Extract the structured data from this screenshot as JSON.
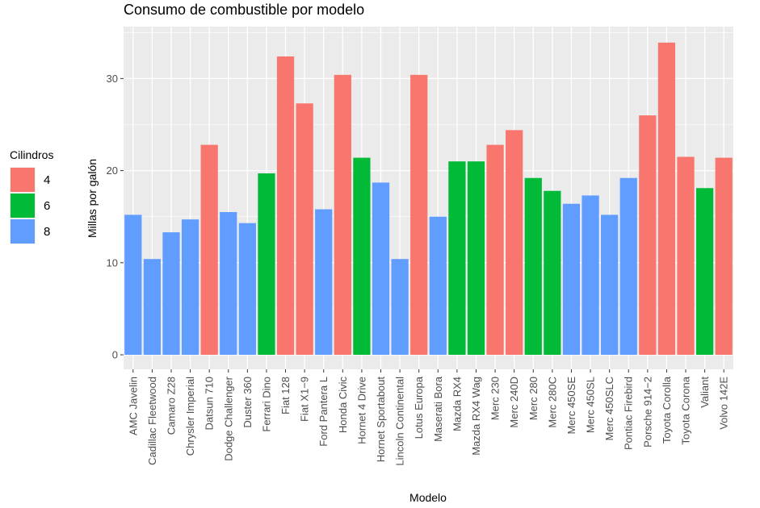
{
  "chart_data": {
    "type": "bar",
    "title": "Consumo de combustible por modelo",
    "xlabel": "Modelo",
    "ylabel": "Millas por galón",
    "ylim": [
      0,
      35
    ],
    "yticks": [
      0,
      10,
      20,
      30
    ],
    "grid": true,
    "legend": {
      "title": "Cilindros",
      "placement": "left",
      "entries": [
        {
          "label": "4",
          "color": "#F8766D"
        },
        {
          "label": "6",
          "color": "#00BA38"
        },
        {
          "label": "8",
          "color": "#619CFF"
        }
      ]
    },
    "categories": [
      "AMC Javelin",
      "Cadillac Fleetwood",
      "Camaro Z28",
      "Chrysler Imperial",
      "Datsun 710",
      "Dodge Challenger",
      "Duster 360",
      "Ferrari Dino",
      "Fiat 128",
      "Fiat X1−9",
      "Ford Pantera L",
      "Honda Civic",
      "Hornet 4 Drive",
      "Hornet Sportabout",
      "Lincoln Continental",
      "Lotus Europa",
      "Maserati Bora",
      "Mazda RX4",
      "Mazda RX4 Wag",
      "Merc 230",
      "Merc 240D",
      "Merc 280",
      "Merc 280C",
      "Merc 450SE",
      "Merc 450SL",
      "Merc 450SLC",
      "Pontiac Firebird",
      "Porsche 914−2",
      "Toyota Corolla",
      "Toyota Corona",
      "Valiant",
      "Volvo 142E"
    ],
    "values": [
      15.2,
      10.4,
      13.3,
      14.7,
      22.8,
      15.5,
      14.3,
      19.7,
      32.4,
      27.3,
      15.8,
      30.4,
      21.4,
      18.7,
      10.4,
      30.4,
      15.0,
      21.0,
      21.0,
      22.8,
      24.4,
      19.2,
      17.8,
      16.4,
      17.3,
      15.2,
      19.2,
      26.0,
      33.9,
      21.5,
      18.1,
      21.4
    ],
    "group": [
      "8",
      "8",
      "8",
      "8",
      "4",
      "8",
      "8",
      "6",
      "4",
      "4",
      "8",
      "4",
      "6",
      "8",
      "8",
      "4",
      "8",
      "6",
      "6",
      "4",
      "4",
      "6",
      "6",
      "8",
      "8",
      "8",
      "8",
      "4",
      "4",
      "4",
      "6",
      "4"
    ]
  }
}
